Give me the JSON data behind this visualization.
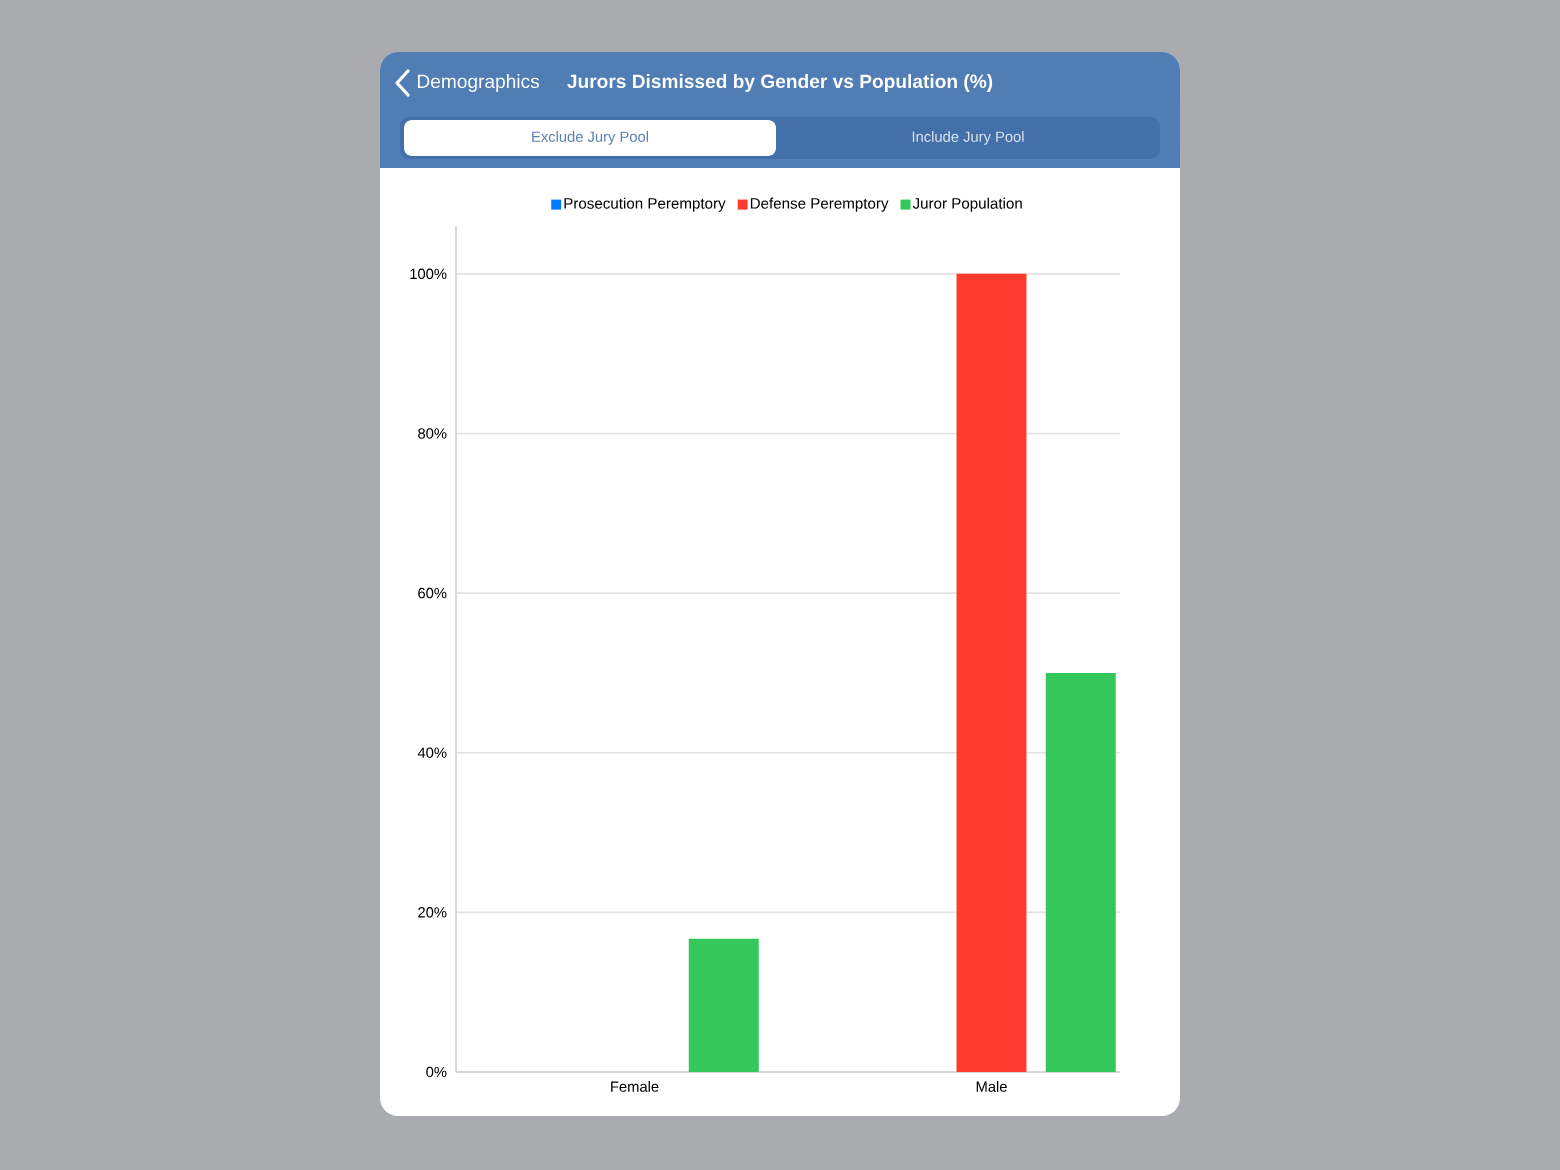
{
  "chart_data": {
    "type": "bar",
    "title": "Jurors Dismissed by Gender vs Population (%)",
    "categories": [
      "Female",
      "Male"
    ],
    "series": [
      {
        "name": "Prosecution Peremptory",
        "color": "#007aff",
        "values": [
          0,
          0
        ]
      },
      {
        "name": "Defense Peremptory",
        "color": "#ff3b30",
        "values": [
          0,
          100
        ]
      },
      {
        "name": "Juror Population",
        "color": "#34c759",
        "values": [
          16.7,
          50
        ]
      }
    ],
    "ylim": [
      0,
      106
    ],
    "yticks": [
      {
        "value": 0,
        "label": "0%"
      },
      {
        "value": 20,
        "label": "20%"
      },
      {
        "value": 40,
        "label": "40%"
      },
      {
        "value": 60,
        "label": "60%"
      },
      {
        "value": 80,
        "label": "80%"
      },
      {
        "value": 100,
        "label": "100%"
      }
    ],
    "grid": "y",
    "legend": "top",
    "annotations": [
      "Demographics",
      "Exclude Jury Pool",
      "Include Jury Pool"
    ]
  }
}
